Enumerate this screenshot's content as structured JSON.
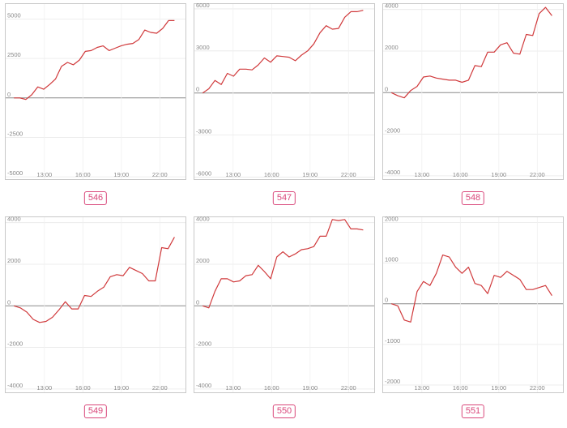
{
  "chart_data": [
    {
      "type": "line",
      "badge": "546",
      "ylim": [
        -5200,
        6000
      ],
      "yticks": [
        5000,
        2500,
        0,
        -2500,
        -5000
      ],
      "ytick_labels": [
        "5000",
        "2500",
        "0",
        "-2500",
        "-5000"
      ],
      "xticks": [
        "13:00",
        "16:00",
        "19:00",
        "22:00"
      ],
      "grid": true,
      "line_color": "#d0393b",
      "values": [
        0,
        0,
        -100,
        200,
        700,
        550,
        850,
        1200,
        2000,
        2250,
        2100,
        2400,
        2950,
        3000,
        3200,
        3300,
        3000,
        3150,
        3300,
        3400,
        3450,
        3700,
        4300,
        4150,
        4100,
        4400,
        4900,
        4900
      ]
    },
    {
      "type": "line",
      "badge": "547",
      "ylim": [
        -6200,
        6400
      ],
      "yticks": [
        6000,
        3000,
        0,
        -3000,
        -6000
      ],
      "ytick_labels": [
        "6000",
        "3000",
        "0",
        "-3000",
        "-6000"
      ],
      "xticks": [
        "13:00",
        "16:00",
        "19:00",
        "22:00"
      ],
      "grid": true,
      "line_color": "#d0393b",
      "values": [
        0,
        300,
        900,
        600,
        1400,
        1200,
        1700,
        1700,
        1650,
        2000,
        2500,
        2200,
        2650,
        2600,
        2550,
        2300,
        2700,
        3000,
        3500,
        4300,
        4800,
        4550,
        4600,
        5400,
        5800,
        5800,
        5900
      ]
    },
    {
      "type": "line",
      "badge": "548",
      "ylim": [
        -4200,
        4300
      ],
      "yticks": [
        4000,
        2000,
        0,
        -2000,
        -4000
      ],
      "ytick_labels": [
        "4000",
        "2000",
        "0",
        "-2000",
        "-4000"
      ],
      "xticks": [
        "13:00",
        "16:00",
        "19:00",
        "22:00"
      ],
      "grid": true,
      "line_color": "#d0393b",
      "values": [
        0,
        -150,
        -250,
        100,
        300,
        750,
        800,
        700,
        650,
        600,
        600,
        500,
        600,
        1300,
        1250,
        1950,
        1950,
        2300,
        2400,
        1900,
        1850,
        2800,
        2750,
        3800,
        4100,
        3700
      ]
    },
    {
      "type": "line",
      "badge": "549",
      "ylim": [
        -4200,
        4300
      ],
      "yticks": [
        4000,
        2000,
        0,
        -2000,
        -4000
      ],
      "ytick_labels": [
        "4000",
        "2000",
        "0",
        "-2000",
        "-4000"
      ],
      "xticks": [
        "13:00",
        "16:00",
        "19:00",
        "22:00"
      ],
      "grid": true,
      "line_color": "#d0393b",
      "values": [
        0,
        -100,
        -300,
        -650,
        -800,
        -750,
        -550,
        -200,
        200,
        -150,
        -150,
        500,
        450,
        700,
        900,
        1400,
        1500,
        1450,
        1850,
        1700,
        1550,
        1200,
        1200,
        2800,
        2750,
        3300
      ]
    },
    {
      "type": "line",
      "badge": "550",
      "ylim": [
        -4200,
        4300
      ],
      "yticks": [
        4000,
        2000,
        0,
        -2000,
        -4000
      ],
      "ytick_labels": [
        "4000",
        "2000",
        "0",
        "-2000",
        "-4000"
      ],
      "xticks": [
        "13:00",
        "16:00",
        "19:00",
        "22:00"
      ],
      "grid": true,
      "line_color": "#d0393b",
      "values": [
        0,
        -100,
        700,
        1300,
        1300,
        1150,
        1200,
        1450,
        1500,
        1950,
        1650,
        1300,
        2350,
        2600,
        2350,
        2500,
        2700,
        2750,
        2850,
        3350,
        3350,
        4150,
        4100,
        4150,
        3700,
        3700,
        3650
      ]
    },
    {
      "type": "line",
      "badge": "551",
      "ylim": [
        -2200,
        2150
      ],
      "yticks": [
        2000,
        1000,
        0,
        -1000,
        -2000
      ],
      "ytick_labels": [
        "2000",
        "1000",
        "0",
        "-1000",
        "-2000"
      ],
      "xticks": [
        "13:00",
        "16:00",
        "19:00",
        "22:00"
      ],
      "grid": true,
      "line_color": "#d0393b",
      "values": [
        0,
        -50,
        -400,
        -450,
        300,
        550,
        450,
        750,
        1200,
        1150,
        900,
        750,
        900,
        500,
        450,
        250,
        700,
        650,
        800,
        700,
        600,
        350,
        350,
        400,
        450,
        200
      ]
    }
  ]
}
